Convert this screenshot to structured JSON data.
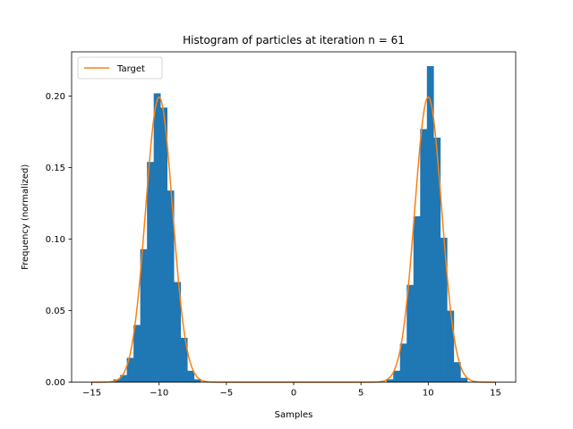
{
  "chart_data": {
    "type": "bar",
    "title": "Histogram of particles at iteration n = 61",
    "xlabel": "Samples",
    "ylabel": "Frequency (normalized)",
    "xlim": [
      -16.5,
      16.5
    ],
    "ylim": [
      0,
      0.231
    ],
    "xticks": [
      -15,
      -10,
      -5,
      0,
      5,
      10,
      15
    ],
    "xtick_labels": [
      "−15",
      "−10",
      "−5",
      "0",
      "5",
      "10",
      "15"
    ],
    "yticks": [
      0,
      0.05,
      0.1,
      0.15,
      0.2
    ],
    "ytick_labels": [
      "0.00",
      "0.05",
      "0.10",
      "0.15",
      "0.20"
    ],
    "grid": false,
    "legend": {
      "position": "upper-left",
      "entries": [
        "Target"
      ]
    },
    "colors": {
      "bars": "#1f77b4",
      "target": "#ff7f0e"
    },
    "histogram": {
      "bin_width": 0.5,
      "bins": [
        {
          "x0": -13.4,
          "height": 0.002
        },
        {
          "x0": -12.9,
          "height": 0.005
        },
        {
          "x0": -12.4,
          "height": 0.017
        },
        {
          "x0": -11.9,
          "height": 0.04
        },
        {
          "x0": -11.4,
          "height": 0.093
        },
        {
          "x0": -10.9,
          "height": 0.154
        },
        {
          "x0": -10.4,
          "height": 0.202
        },
        {
          "x0": -9.9,
          "height": 0.192
        },
        {
          "x0": -9.4,
          "height": 0.134
        },
        {
          "x0": -8.9,
          "height": 0.07
        },
        {
          "x0": -8.4,
          "height": 0.031
        },
        {
          "x0": -7.9,
          "height": 0.008
        },
        {
          "x0": -7.4,
          "height": 0.002
        },
        {
          "x0": 6.9,
          "height": 0.002
        },
        {
          "x0": 7.4,
          "height": 0.008
        },
        {
          "x0": 7.9,
          "height": 0.027
        },
        {
          "x0": 8.4,
          "height": 0.068
        },
        {
          "x0": 8.9,
          "height": 0.116
        },
        {
          "x0": 9.4,
          "height": 0.177
        },
        {
          "x0": 9.9,
          "height": 0.221
        },
        {
          "x0": 10.4,
          "height": 0.171
        },
        {
          "x0": 10.9,
          "height": 0.101
        },
        {
          "x0": 11.4,
          "height": 0.05
        },
        {
          "x0": 11.9,
          "height": 0.014
        },
        {
          "x0": 12.4,
          "height": 0.003
        }
      ]
    },
    "series": [
      {
        "name": "Target",
        "type": "line",
        "function": "mixture of two normals, means -10 and 10, sigma 1, equal weights",
        "x_range": [
          -15,
          15
        ],
        "samples": 301
      }
    ]
  }
}
